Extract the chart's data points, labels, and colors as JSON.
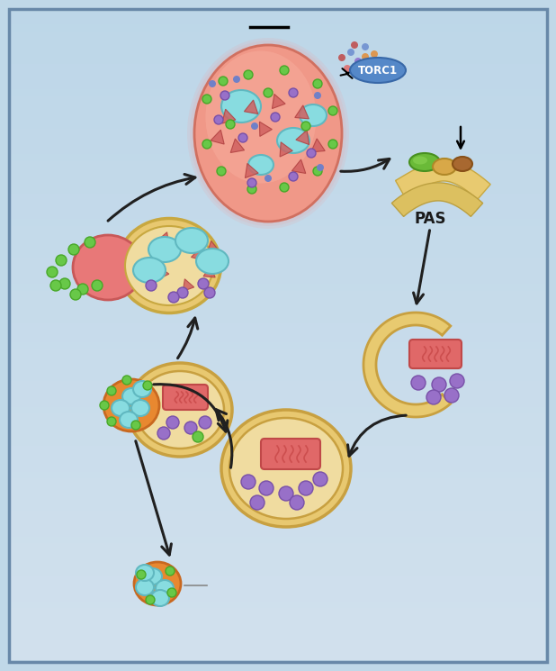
{
  "bg_color": "#c0d8e8",
  "bg_inner": "#c8dce8",
  "border_color": "#6888a8",
  "torc1_label": "TORC1",
  "torc1_bg": "#6090c8",
  "pas_label": "PAS",
  "lysosome_fill": "#f09090",
  "lysosome_edge": "#d07070",
  "autophagosome_fill_outer": "#e8c870",
  "autophagosome_fill_inner": "#f0dca0",
  "autophagosome_edge": "#c8a040",
  "phagophore_fill": "#e8ca70",
  "phagophore_edge": "#c8a040",
  "mitochondria_fill": "#e06868",
  "mitochondria_edge": "#c04848",
  "mitochondria_line": "#c84848",
  "purple_dot": "#9870c8",
  "purple_dot_edge": "#7850a8",
  "green_dot": "#68c848",
  "green_dot_edge": "#48a828",
  "cyan_blob": "#88dce0",
  "cyan_blob_edge": "#60b8c0",
  "red_triangle": "#d06060",
  "red_triangle_edge": "#b04040",
  "orange_lys_fill": "#e88830",
  "orange_lys_edge": "#c86820",
  "arrow_color": "#202020",
  "particle_colors": [
    "#e07070",
    "#9070d0",
    "#e09040",
    "#7090d0",
    "#c05050"
  ],
  "dot_gray": "#888888"
}
